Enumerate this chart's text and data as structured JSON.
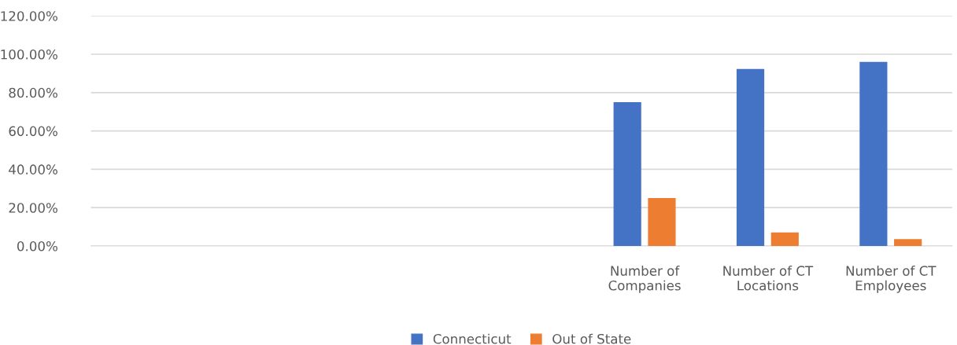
{
  "chart_data": {
    "type": "bar",
    "categories": [
      null,
      null,
      null,
      null,
      "Number of\nCompanies",
      "Number of CT\nLocations",
      "Number of CT\nEmployees"
    ],
    "series": [
      {
        "name": "Connecticut",
        "color": "#4472c4",
        "values": [
          null,
          null,
          null,
          null,
          75,
          92.3,
          96
        ]
      },
      {
        "name": "Out of State",
        "color": "#ed7d31",
        "values": [
          null,
          null,
          null,
          null,
          25,
          7.1,
          3.6
        ]
      }
    ],
    "ylim": [
      0,
      120
    ],
    "yticks": [
      {
        "value": 0,
        "label": "0.00%"
      },
      {
        "value": 20,
        "label": "20.00%"
      },
      {
        "value": 40,
        "label": "40.00%"
      },
      {
        "value": 60,
        "label": "60.00%"
      },
      {
        "value": 80,
        "label": "80.00%"
      },
      {
        "value": 100,
        "label": "100.00%"
      },
      {
        "value": 120,
        "label": "120.00%"
      }
    ],
    "grid": "y",
    "legend": "bottom"
  }
}
